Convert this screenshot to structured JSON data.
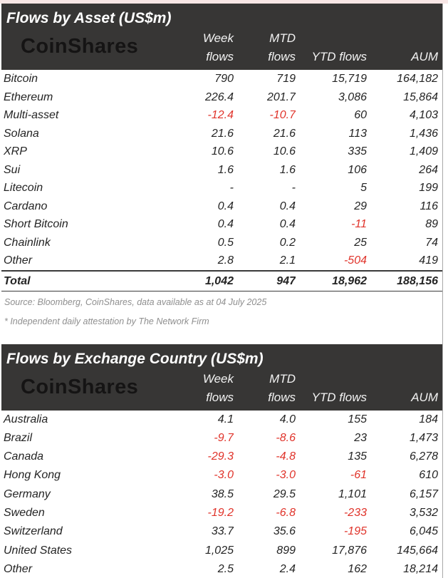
{
  "colors": {
    "header_bg": "#373635",
    "negative": "#e0332a",
    "text": "#242424",
    "muted": "#8f8f8f",
    "logo": "#151414",
    "top_strip": "#f7e6e5"
  },
  "chart_data": [
    {
      "type": "table",
      "title": "Flows by Asset (US$m)",
      "logo": "CoinShares",
      "columns": [
        "Week flows",
        "MTD flows",
        "YTD flows",
        "AUM"
      ],
      "header": {
        "week_l1": "Week",
        "week_l2": "flows",
        "mtd_l1": "MTD",
        "mtd_l2": "flows",
        "ytd": "YTD flows",
        "aum": "AUM"
      },
      "rows": [
        [
          "Bitcoin",
          "790",
          "719",
          "15,719",
          "164,182"
        ],
        [
          "Ethereum",
          "226.4",
          "201.7",
          "3,086",
          "15,864"
        ],
        [
          "Multi-asset",
          "-12.4",
          "-10.7",
          "60",
          "4,103"
        ],
        [
          "Solana",
          "21.6",
          "21.6",
          "113",
          "1,436"
        ],
        [
          "XRP",
          "10.6",
          "10.6",
          "335",
          "1,409"
        ],
        [
          "Sui",
          "1.6",
          "1.6",
          "106",
          "264"
        ],
        [
          "Litecoin",
          "-",
          "-",
          "5",
          "199"
        ],
        [
          "Cardano",
          "0.4",
          "0.4",
          "29",
          "116"
        ],
        [
          "Short Bitcoin",
          "0.4",
          "0.4",
          "-11",
          "89"
        ],
        [
          "Chainlink",
          "0.5",
          "0.2",
          "25",
          "74"
        ],
        [
          "Other",
          "2.8",
          "2.1",
          "-504",
          "419"
        ]
      ],
      "total": [
        "Total",
        "1,042",
        "947",
        "18,962",
        "188,156"
      ],
      "source": "Source: Bloomberg, CoinShares, data available as at 04 July 2025",
      "footnote": "* Independent daily attestation by The Network Firm"
    },
    {
      "type": "table",
      "title": "Flows by Exchange Country (US$m)",
      "logo": "CoinShares",
      "columns": [
        "Week flows",
        "MTD flows",
        "YTD flows",
        "AUM"
      ],
      "header": {
        "week_l1": "Week",
        "week_l2": "flows",
        "mtd_l1": "MTD",
        "mtd_l2": "flows",
        "ytd": "YTD flows",
        "aum": "AUM"
      },
      "rows": [
        [
          "Australia",
          "4.1",
          "4.0",
          "155",
          "184"
        ],
        [
          "Brazil",
          "-9.7",
          "-8.6",
          "23",
          "1,473"
        ],
        [
          "Canada",
          "-29.3",
          "-4.8",
          "135",
          "6,278"
        ],
        [
          "Hong Kong",
          "-3.0",
          "-3.0",
          "-61",
          "610"
        ],
        [
          "Germany",
          "38.5",
          "29.5",
          "1,101",
          "6,157"
        ],
        [
          "Sweden",
          "-19.2",
          "-6.8",
          "-233",
          "3,532"
        ],
        [
          "Switzerland",
          "33.7",
          "35.6",
          "-195",
          "6,045"
        ],
        [
          "United States",
          "1,025",
          "899",
          "17,876",
          "145,664"
        ],
        [
          "Other",
          "2.5",
          "2.4",
          "162",
          "18,214"
        ]
      ]
    }
  ]
}
